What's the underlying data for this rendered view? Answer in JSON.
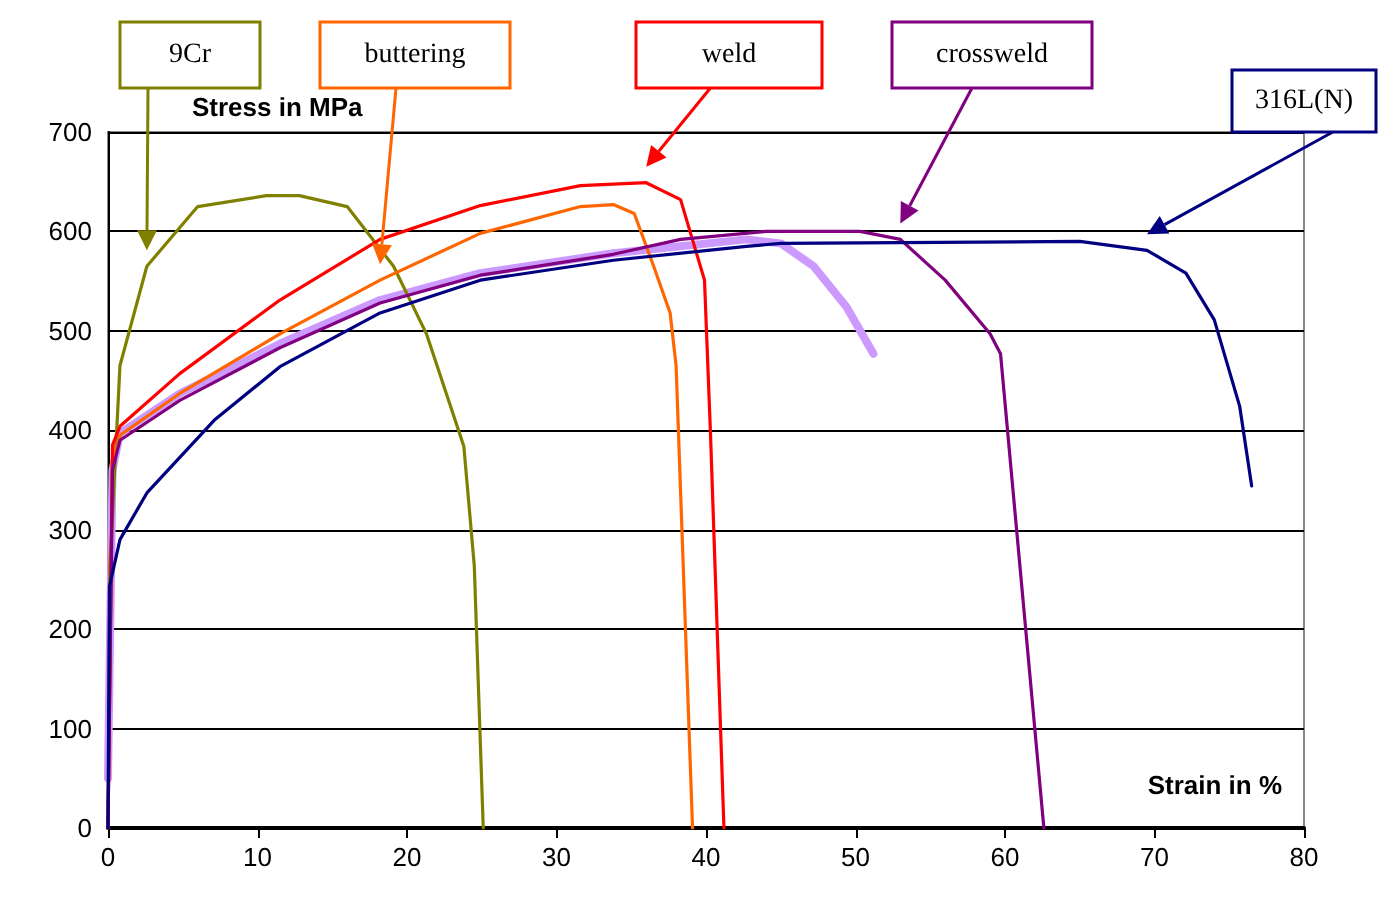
{
  "chart_data": {
    "type": "line",
    "xlabel": "Strain in %",
    "ylabel": "Stress in MPa",
    "xlim": [
      0,
      80
    ],
    "xticks": [
      0,
      10,
      20,
      30,
      40,
      50,
      60,
      70,
      80
    ],
    "ylim": [
      0,
      700
    ],
    "yticks": [
      0,
      100,
      200,
      300,
      400,
      500,
      600,
      700
    ],
    "grid": "y",
    "legend": false,
    "marker": "none",
    "line_style": "solid",
    "series": [
      {
        "name": "9Cr",
        "color": "#808000",
        "x": [
          0,
          0.13,
          0.8,
          2.6,
          6,
          10.6,
          12.8,
          16,
          19.1,
          21.3,
          23.8,
          24.5,
          25.1
        ],
        "values": [
          0,
          264,
          465,
          565,
          625,
          636,
          636,
          625,
          565,
          497,
          384,
          264,
          0
        ]
      },
      {
        "name": "buttering",
        "color": "#ff6600",
        "x": [
          0,
          0.3,
          0.8,
          4.8,
          11.5,
          18.2,
          24.9,
          31.6,
          33.8,
          35.2,
          36.5,
          37.6,
          38,
          39.1
        ],
        "values": [
          0,
          370,
          395,
          437,
          497,
          551,
          598,
          625,
          627,
          618,
          565,
          518,
          465,
          0
        ]
      },
      {
        "name": "weld",
        "color": "#ff0000",
        "x": [
          0,
          0.3,
          0.8,
          4.8,
          11.5,
          18.2,
          24.9,
          31.6,
          36,
          38.3,
          39.9,
          40.3,
          41.2
        ],
        "values": [
          0,
          385,
          404,
          457,
          531,
          592,
          626,
          646,
          649,
          632,
          551,
          397,
          0
        ]
      },
      {
        "name": "crossweld",
        "color": "#800080",
        "x": [
          0,
          0.3,
          0.8,
          4.8,
          11.5,
          18.2,
          24.9,
          33.8,
          38.3,
          44,
          50.3,
          53,
          56,
          59,
          59.7,
          62.6
        ],
        "values": [
          0,
          360,
          390,
          430,
          483,
          528,
          556,
          577,
          592,
          600,
          600,
          592,
          551,
          497,
          477,
          0
        ]
      },
      {
        "name": "316L(N)",
        "color": "#000080",
        "x": [
          0,
          0.1,
          0.8,
          2.6,
          7.1,
          11.5,
          18.2,
          24.9,
          33.8,
          42.7,
          45,
          65,
          69.5,
          72.1,
          74,
          75.7,
          76.5
        ],
        "values": [
          0,
          243,
          290,
          337,
          410,
          464,
          518,
          551,
          571,
          585,
          588,
          590,
          581,
          558,
          511,
          424,
          344
        ]
      },
      {
        "color": "#cc99ff",
        "x": [
          0,
          0.3,
          0.8,
          4.8,
          11.5,
          18.2,
          24.9,
          33.8,
          42.7,
          45,
          47.2,
          49.4,
          51.2
        ],
        "values": [
          50,
          360,
          397,
          437,
          487,
          531,
          558,
          578,
          592,
          588,
          565,
          524,
          477
        ]
      }
    ]
  }
}
